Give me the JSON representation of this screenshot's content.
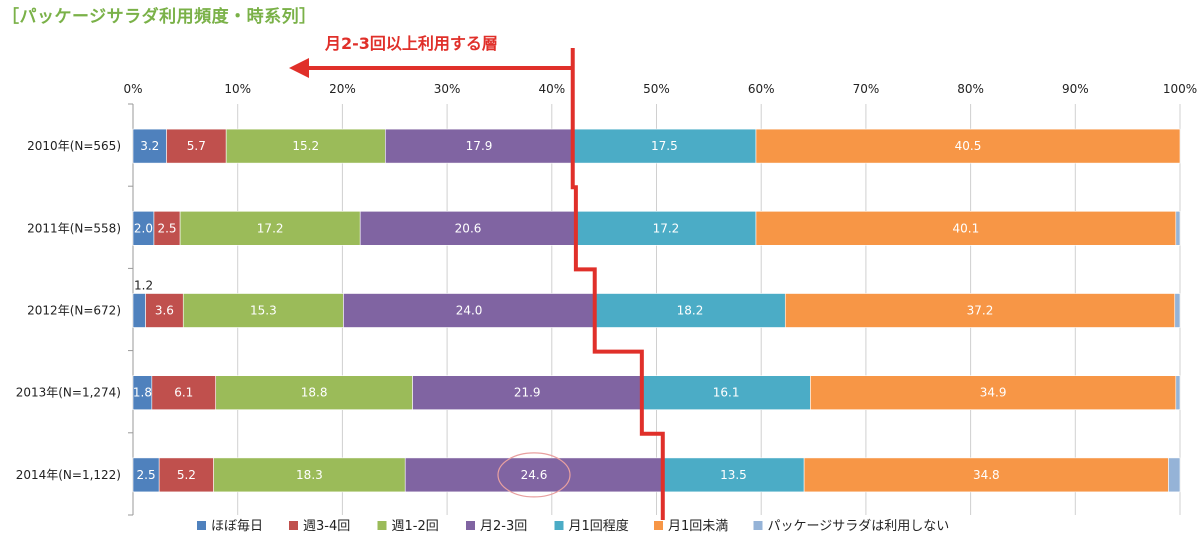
{
  "title": "［パッケージサラダ利用頻度・時系列］",
  "annotation": "月2-3回以上利用する層",
  "chart_data": {
    "type": "bar",
    "orientation": "horizontal",
    "stacked": true,
    "xlim": [
      0,
      100
    ],
    "x_ticks": [
      "0%",
      "10%",
      "20%",
      "30%",
      "40%",
      "50%",
      "60%",
      "70%",
      "80%",
      "90%",
      "100%"
    ],
    "categories": [
      "2010年(N=565)",
      "2011年(N=558)",
      "2012年(N=672)",
      "2013年(N=1,274)",
      "2014年(N=1,122)"
    ],
    "series": [
      {
        "name": "ほぼ毎日",
        "color": "#4f81bd",
        "values": [
          3.2,
          2.0,
          1.2,
          1.8,
          2.5
        ]
      },
      {
        "name": "週3-4回",
        "color": "#c0504d",
        "values": [
          5.7,
          2.5,
          3.6,
          6.1,
          5.2
        ]
      },
      {
        "name": "週1-2回",
        "color": "#9bbb59",
        "values": [
          15.2,
          17.2,
          15.3,
          18.8,
          18.3
        ]
      },
      {
        "name": "月2-3回",
        "color": "#8064a2",
        "values": [
          17.9,
          20.6,
          24.0,
          21.9,
          24.6
        ]
      },
      {
        "name": "月1回程度",
        "color": "#4bacc6",
        "values": [
          17.5,
          17.2,
          18.2,
          16.1,
          13.5
        ]
      },
      {
        "name": "月1回未満",
        "color": "#f79646",
        "values": [
          40.5,
          40.1,
          37.2,
          34.9,
          34.8
        ]
      },
      {
        "name": "パッケージサラダは利用しない",
        "color": "#95b3d7",
        "values": [
          0.0,
          0.4,
          0.5,
          0.4,
          1.1
        ]
      }
    ],
    "value_labels": [
      [
        "3.2",
        "5.7",
        "15.2",
        "17.9",
        "17.5",
        "40.5",
        ""
      ],
      [
        "2.0",
        "2.5",
        "17.2",
        "20.6",
        "17.2",
        "40.1",
        ""
      ],
      [
        "1.2",
        "3.6",
        "15.3",
        "24.0",
        "18.2",
        "37.2",
        ""
      ],
      [
        "1.8",
        "6.1",
        "18.8",
        "21.9",
        "16.1",
        "34.9",
        ""
      ],
      [
        "2.5",
        "5.2",
        "18.3",
        "24.6",
        "13.5",
        "34.8",
        ""
      ]
    ],
    "legend_position": "bottom",
    "grid": true,
    "highlight_line_color": "#e0302a",
    "highlight_circle": {
      "category_index": 4,
      "series_index": 3
    }
  }
}
